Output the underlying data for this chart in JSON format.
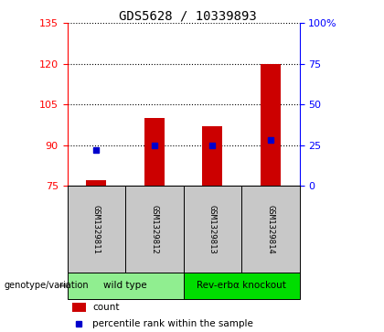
{
  "title": "GDS5628 / 10339893",
  "samples": [
    "GSM1329811",
    "GSM1329812",
    "GSM1329813",
    "GSM1329814"
  ],
  "counts": [
    77,
    100,
    97,
    120
  ],
  "percentiles": [
    22,
    25,
    25,
    28
  ],
  "ylim_left": [
    75,
    135
  ],
  "ylim_right": [
    0,
    100
  ],
  "left_ticks": [
    75,
    90,
    105,
    120,
    135
  ],
  "right_ticks": [
    0,
    25,
    50,
    75,
    100
  ],
  "right_tick_labels": [
    "0",
    "25",
    "50",
    "75",
    "100%"
  ],
  "bar_color": "#cc0000",
  "dot_color": "#0000cc",
  "bar_width": 0.35,
  "genotype_groups": [
    {
      "label": "wild type",
      "indices": [
        0,
        1
      ],
      "color": "#90ee90"
    },
    {
      "label": "Rev-erbα knockout",
      "indices": [
        2,
        3
      ],
      "color": "#00dd00"
    }
  ],
  "xlabel_label": "genotype/variation",
  "legend_count_label": "count",
  "legend_pct_label": "percentile rank within the sample",
  "plot_bg": "#ffffff",
  "base_value": 75,
  "dotted_ticks": [
    90,
    105,
    120
  ],
  "sample_box_color": "#c8c8c8",
  "arrow_color": "#808080"
}
